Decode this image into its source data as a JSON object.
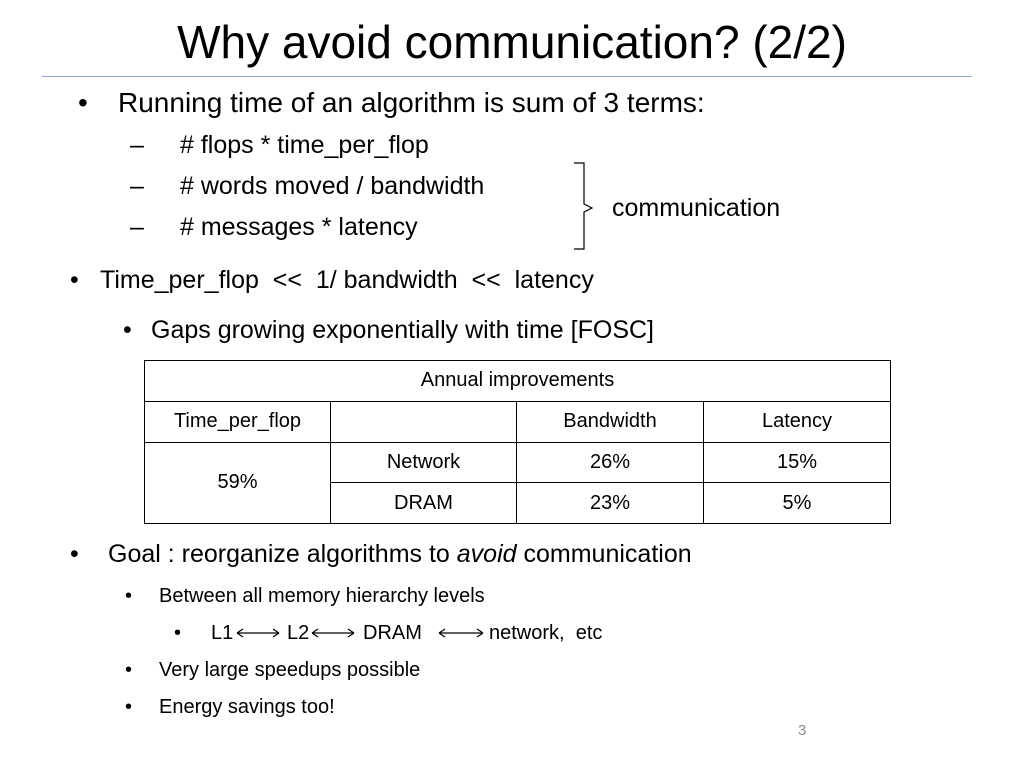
{
  "title": "Why avoid communication? (2/2)",
  "intro": {
    "text": "Running time of an algorithm is sum of 3 terms:",
    "terms": [
      "# flops * time_per_flop",
      "# words moved / bandwidth",
      "# messages * latency"
    ],
    "dash": "–",
    "brace_label": "communication"
  },
  "ordering": {
    "text": "Time_per_flop  <<  1/ bandwidth  <<  latency",
    "sub": "Gaps growing exponentially with time [FOSC]"
  },
  "table": {
    "caption": "Annual improvements",
    "headers": [
      "Time_per_flop",
      "",
      "Bandwidth",
      "Latency"
    ],
    "flop_value": "59%",
    "rows": [
      {
        "label": "Network",
        "bandwidth": "26%",
        "latency": "15%"
      },
      {
        "label": "DRAM",
        "bandwidth": "23%",
        "latency": "5%"
      }
    ]
  },
  "goal": {
    "prefix": "Goal : reorganize algorithms to ",
    "emphasis": "avoid",
    "suffix": " communication",
    "items": {
      "levels": "Between all memory hierarchy levels",
      "chain": [
        "L1",
        "L2",
        "DRAM",
        "network,  etc"
      ],
      "speedups": "Very large speedups possible",
      "energy": "Energy savings too!"
    }
  },
  "page_number": "3",
  "bullet_glyph": "•"
}
